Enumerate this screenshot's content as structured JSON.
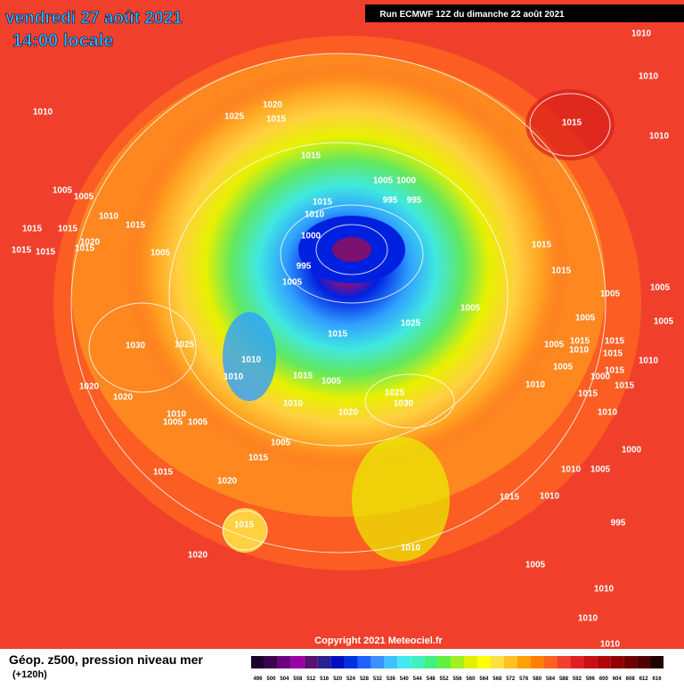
{
  "header": {
    "title": "vendredi 27 août 2021",
    "subtitle": "14:00 locale",
    "run": "Run ECMWF 12Z du dimanche 22 août 2021"
  },
  "copyright": "Copyright 2021 Meteociel.fr",
  "legend": {
    "title": "Géop. z500, pression niveau mer",
    "lead": "(+120h)",
    "labels": [
      "496",
      "500",
      "504",
      "508",
      "512",
      "516",
      "520",
      "524",
      "528",
      "532",
      "536",
      "540",
      "544",
      "548",
      "552",
      "556",
      "560",
      "564",
      "568",
      "572",
      "576",
      "580",
      "584",
      "588",
      "592",
      "596",
      "600",
      "604",
      "608",
      "612",
      "616"
    ],
    "colors": [
      "#1e0030",
      "#3c0050",
      "#6a0080",
      "#9a00a8",
      "#5a1070",
      "#2a2090",
      "#0010c0",
      "#0030e0",
      "#2060ff",
      "#3c90ff",
      "#40c0ff",
      "#40e8f0",
      "#40f0c0",
      "#40f080",
      "#60f040",
      "#a0f020",
      "#e0f000",
      "#ffff00",
      "#ffe040",
      "#ffc020",
      "#ffa000",
      "#ff8000",
      "#ff6020",
      "#f04030",
      "#e02020",
      "#c81010",
      "#b00808",
      "#900000",
      "#700000",
      "#500000",
      "#200000"
    ]
  },
  "isobar_labels": [
    "1010",
    "1010",
    "1010",
    "1025",
    "1020",
    "1015",
    "1015",
    "1010",
    "1015",
    "1005",
    "1000",
    "1005",
    "1005",
    "1015",
    "995",
    "995",
    "1010",
    "1010",
    "1015",
    "1015",
    "1015",
    "1020",
    "1000",
    "1015",
    "1015",
    "1015",
    "1005",
    "1015",
    "995",
    "1015",
    "1005",
    "1005",
    "1005",
    "1005",
    "1005",
    "1025",
    "1015",
    "1030",
    "1025",
    "1005",
    "1015",
    "1015",
    "1005",
    "1010",
    "1010",
    "1015",
    "1005",
    "1015",
    "1010",
    "1010",
    "1015",
    "1005",
    "1010",
    "1015",
    "1000",
    "1015",
    "1020",
    "1020",
    "1025",
    "1030",
    "1010",
    "1010",
    "1005",
    "1005",
    "1020",
    "1010",
    "1005",
    "1015",
    "1000",
    "1015",
    "1020",
    "1010",
    "1005",
    "1015",
    "1010",
    "1015",
    "995",
    "1020",
    "1010",
    "1005",
    "1010",
    "1010",
    "1010"
  ]
}
